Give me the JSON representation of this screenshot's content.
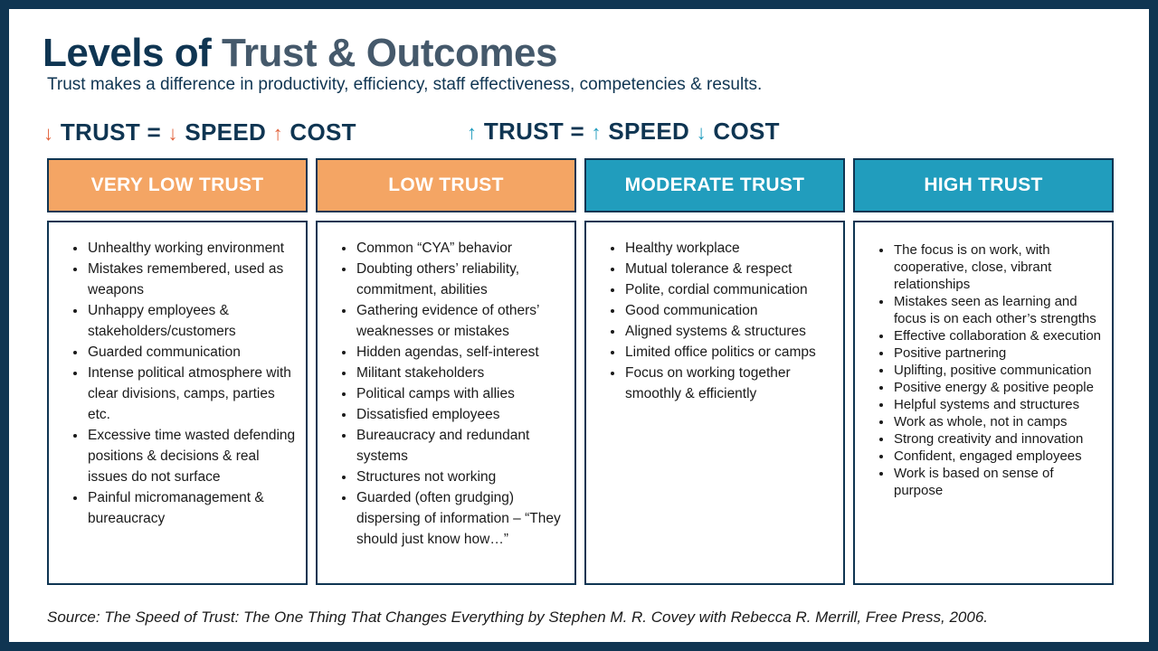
{
  "title": {
    "part1": "Levels of",
    "part2": "Trust & Outcomes"
  },
  "subtitle": "Trust makes a difference in productivity, efficiency, staff effectiveness, competencies & results.",
  "equation_low": {
    "arrow1": "↓",
    "trust": "TRUST =",
    "arrow2": "↓",
    "speed": "SPEED",
    "arrow3": "↑",
    "cost": "COST"
  },
  "equation_high": {
    "arrow1": "↑",
    "trust": "TRUST =",
    "arrow2": "↑",
    "speed": "SPEED",
    "arrow3": "↓",
    "cost": "COST"
  },
  "colors": {
    "background": "#0f3552",
    "orange_header": "#f4a564",
    "teal_header": "#219dbd",
    "orange_arrow": "#e2623c",
    "teal_arrow": "#1e9bbd"
  },
  "columns": [
    {
      "header": "VERY LOW TRUST",
      "items": [
        "Unhealthy working environment",
        "Mistakes remembered, used as weapons",
        "Unhappy employees & stakeholders/customers",
        "Guarded communication",
        "Intense political atmosphere with clear divisions, camps, parties etc.",
        "Excessive time wasted defending positions & decisions & real issues do not surface",
        "Painful micromanagement & bureaucracy"
      ]
    },
    {
      "header": "LOW TRUST",
      "items": [
        "Common “CYA” behavior",
        "Doubting others’ reliability, commitment, abilities",
        "Gathering evidence of others’ weaknesses or mistakes",
        "Hidden agendas, self-interest",
        "Militant stakeholders",
        "Political camps with allies",
        "Dissatisfied employees",
        "Bureaucracy and redundant systems",
        "Structures not working",
        "Guarded (often grudging) dispersing of information – “They should just know how…”"
      ]
    },
    {
      "header": "MODERATE TRUST",
      "items": [
        "Healthy workplace",
        "Mutual tolerance & respect",
        "Polite, cordial communication",
        "Good communication",
        "Aligned systems & structures",
        "Limited office politics or camps",
        "Focus on working together smoothly & efficiently"
      ]
    },
    {
      "header": "HIGH TRUST",
      "items": [
        "The focus is on work, with cooperative, close, vibrant relationships",
        "Mistakes seen as learning and focus is on each other’s strengths",
        "Effective collaboration & execution",
        "Positive partnering",
        "Uplifting, positive communication",
        "Positive energy & positive people",
        "Helpful systems and structures",
        "Work as whole, not in camps",
        "Strong creativity and innovation",
        "Confident, engaged employees",
        "Work is based on sense of purpose"
      ]
    }
  ],
  "source": "Source: The Speed of Trust: The One Thing That Changes Everything by Stephen M. R. Covey with Rebecca R. Merrill, Free Press, 2006."
}
